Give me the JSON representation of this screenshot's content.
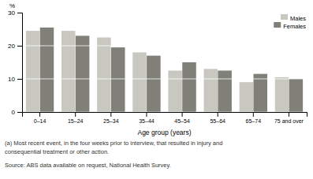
{
  "chart_data": {
    "type": "bar",
    "categories": [
      "0–14",
      "15–24",
      "25–34",
      "35–44",
      "45–54",
      "55–64",
      "65–74",
      "75 and over"
    ],
    "series": [
      {
        "name": "Males",
        "color": "#c8c8c0",
        "values": [
          24.5,
          24.5,
          22.5,
          18.0,
          12.5,
          13.0,
          9.0,
          10.5
        ]
      },
      {
        "name": "Females",
        "color": "#808078",
        "values": [
          25.5,
          23.0,
          19.5,
          17.0,
          15.0,
          12.5,
          11.5,
          10.0
        ]
      }
    ],
    "xlabel": "Age group (years)",
    "ylabel": "%",
    "ylim": [
      0,
      30
    ],
    "yticks": [
      0,
      10,
      20,
      30
    ],
    "grid": true,
    "legend": "top-right",
    "annotations": [
      "(a) Most recent event, in the four weeks prior to interview, that resulted in injury and",
      "consequential treatment or other action.",
      "Source: ABS data available on request, National Health Survey."
    ]
  }
}
